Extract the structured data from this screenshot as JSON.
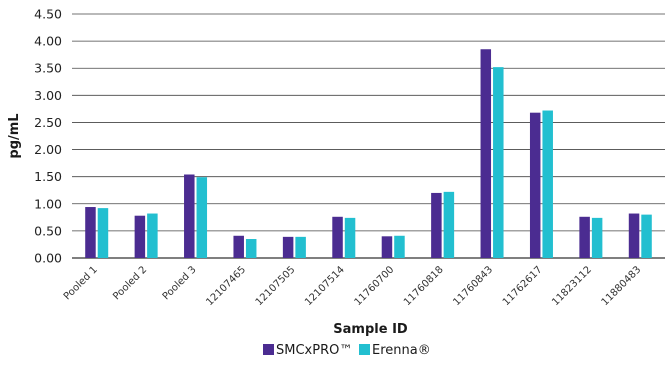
{
  "chart_data": {
    "type": "bar",
    "title": "",
    "xlabel": "Sample ID",
    "ylabel": "pg/mL",
    "ylim": [
      0,
      4.5
    ],
    "yticks": [
      "0.00",
      "0.50",
      "1.00",
      "1.50",
      "2.00",
      "2.50",
      "3.00",
      "3.50",
      "4.00",
      "4.50"
    ],
    "grid": "horizontal",
    "legend_position": "bottom",
    "categories": [
      "Pooled 1",
      "Pooled 2",
      "Pooled 3",
      "12107465",
      "12107505",
      "12107514",
      "11760700",
      "11760818",
      "11760843",
      "11762617",
      "11823112",
      "11880483"
    ],
    "series": [
      {
        "name": "SMCxPRO™",
        "color": "#4b2c91",
        "values": [
          0.94,
          0.78,
          1.54,
          0.41,
          0.39,
          0.76,
          0.4,
          1.2,
          3.85,
          2.68,
          0.76,
          0.82
        ]
      },
      {
        "name": "Erenna®",
        "color": "#22bfd0",
        "values": [
          0.92,
          0.82,
          1.49,
          0.35,
          0.39,
          0.74,
          0.41,
          1.22,
          3.52,
          2.72,
          0.74,
          0.8
        ]
      }
    ]
  }
}
